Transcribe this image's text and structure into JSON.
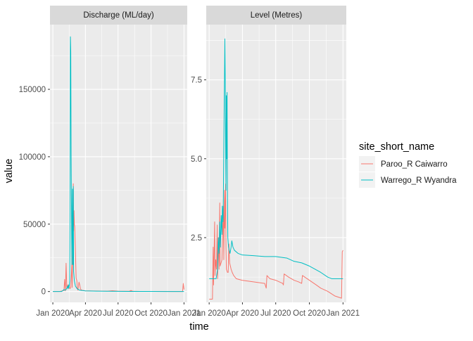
{
  "chart_data": {
    "type": "line",
    "facet_variable": "variable",
    "xlabel": "time",
    "ylabel": "value",
    "x_ticks": [
      "Jan 2020",
      "Apr 2020",
      "Jul 2020",
      "Oct 2020",
      "Jan 2021"
    ],
    "legend": {
      "title": "site_short_name",
      "position": "right",
      "entries": [
        "Paroo_R Caiwarro",
        "Warrego_R Wyandra"
      ]
    },
    "colors": {
      "Paroo_R Caiwarro": "#F8766D",
      "Warrego_R Wyandra": "#00BFC4"
    },
    "grid": true,
    "panels": [
      {
        "strip": "Discharge (ML/day)",
        "ylim": [
          -8000,
          198000
        ],
        "y_ticks": [
          0,
          50000,
          100000,
          150000
        ],
        "y_tick_labels": [
          "0",
          "50000",
          "100000",
          "150000"
        ],
        "series": [
          {
            "name": "Paroo_R Caiwarro",
            "points": [
              [
                "2020-01-01",
                0
              ],
              [
                "2020-01-20",
                0
              ],
              [
                "2020-02-01",
                800
              ],
              [
                "2020-02-03",
                9000
              ],
              [
                "2020-02-05",
                500
              ],
              [
                "2020-02-07",
                21000
              ],
              [
                "2020-02-09",
                2000
              ],
              [
                "2020-02-11",
                5000
              ],
              [
                "2020-02-13",
                3000
              ],
              [
                "2020-02-15",
                4000
              ],
              [
                "2020-02-17",
                2000
              ],
              [
                "2020-02-20",
                3000
              ],
              [
                "2020-02-23",
                20000
              ],
              [
                "2020-02-24",
                3000
              ],
              [
                "2020-02-26",
                40000
              ],
              [
                "2020-02-27",
                80000
              ],
              [
                "2020-02-28",
                45000
              ],
              [
                "2020-02-29",
                60000
              ],
              [
                "2020-03-01",
                50000
              ],
              [
                "2020-03-02",
                48000
              ],
              [
                "2020-03-04",
                30000
              ],
              [
                "2020-03-06",
                10000
              ],
              [
                "2020-03-08",
                8000
              ],
              [
                "2020-03-09",
                3000
              ],
              [
                "2020-03-11",
                1000
              ],
              [
                "2020-03-14",
                7000
              ],
              [
                "2020-03-16",
                5000
              ],
              [
                "2020-03-18",
                2000
              ],
              [
                "2020-03-21",
                1000
              ],
              [
                "2020-03-26",
                800
              ],
              [
                "2020-04-01",
                500
              ],
              [
                "2020-05-01",
                400
              ],
              [
                "2020-06-01",
                300
              ],
              [
                "2020-06-15",
                600
              ],
              [
                "2020-07-01",
                300
              ],
              [
                "2020-08-01",
                200
              ],
              [
                "2020-08-06",
                800
              ],
              [
                "2020-08-11",
                200
              ],
              [
                "2020-09-01",
                100
              ],
              [
                "2020-10-01",
                100
              ],
              [
                "2020-11-01",
                50
              ],
              [
                "2020-12-01",
                20
              ],
              [
                "2020-12-28",
                0
              ],
              [
                "2020-12-30",
                6000
              ],
              [
                "2021-01-01",
                1500
              ]
            ]
          },
          {
            "name": "Warrego_R Wyandra",
            "points": [
              [
                "2020-01-01",
                0
              ],
              [
                "2020-01-25",
                0
              ],
              [
                "2020-01-28",
                500
              ],
              [
                "2020-02-01",
                1500
              ],
              [
                "2020-02-03",
                1000
              ],
              [
                "2020-02-07",
                1500
              ],
              [
                "2020-02-10",
                3000
              ],
              [
                "2020-02-11",
                4000
              ],
              [
                "2020-02-13",
                2000
              ],
              [
                "2020-02-14",
                5000
              ],
              [
                "2020-02-15",
                3000
              ],
              [
                "2020-02-16",
                4500
              ],
              [
                "2020-02-17",
                8000
              ],
              [
                "2020-02-18",
                60000
              ],
              [
                "2020-02-19",
                189000
              ],
              [
                "2020-02-20",
                178000
              ],
              [
                "2020-02-21",
                103000
              ],
              [
                "2020-02-22",
                60000
              ],
              [
                "2020-02-23",
                20000
              ],
              [
                "2020-02-24",
                55000
              ],
              [
                "2020-02-25",
                76000
              ],
              [
                "2020-02-26",
                20000
              ],
              [
                "2020-02-27",
                78000
              ],
              [
                "2020-02-28",
                15000
              ],
              [
                "2020-03-01",
                8000
              ],
              [
                "2020-03-04",
                4000
              ],
              [
                "2020-03-09",
                2000
              ],
              [
                "2020-03-16",
                1000
              ],
              [
                "2020-04-01",
                500
              ],
              [
                "2020-05-01",
                300
              ],
              [
                "2020-06-01",
                200
              ],
              [
                "2020-07-01",
                150
              ],
              [
                "2020-08-01",
                100
              ],
              [
                "2020-09-01",
                80
              ],
              [
                "2020-10-01",
                50
              ],
              [
                "2020-11-01",
                20
              ],
              [
                "2020-12-01",
                5
              ],
              [
                "2020-12-30",
                0
              ],
              [
                "2021-01-01",
                0
              ]
            ]
          }
        ]
      },
      {
        "strip": "Level (Metres)",
        "ylim": [
          0.45,
          9.25
        ],
        "y_ticks": [
          2.5,
          5.0,
          7.5
        ],
        "y_tick_labels": [
          "2.5",
          "5.0",
          "7.5"
        ],
        "series": [
          {
            "name": "Paroo_R Caiwarro",
            "points": [
              [
                "2020-01-01",
                0.55
              ],
              [
                "2020-01-10",
                0.55
              ],
              [
                "2020-01-12",
                2.2
              ],
              [
                "2020-01-13",
                1.0
              ],
              [
                "2020-01-16",
                3.0
              ],
              [
                "2020-01-17",
                1.3
              ],
              [
                "2020-01-19",
                1.8
              ],
              [
                "2020-01-21",
                1.5
              ],
              [
                "2020-01-23",
                2.9
              ],
              [
                "2020-01-24",
                1.2
              ],
              [
                "2020-01-27",
                2.5
              ],
              [
                "2020-01-28",
                1.5
              ],
              [
                "2020-01-30",
                3.6
              ],
              [
                "2020-01-31",
                1.6
              ],
              [
                "2020-02-05",
                1.8
              ],
              [
                "2020-02-09",
                3.5
              ],
              [
                "2020-02-10",
                1.8
              ],
              [
                "2020-02-12",
                4.0
              ],
              [
                "2020-02-13",
                2.8
              ],
              [
                "2020-02-14",
                3.5
              ],
              [
                "2020-02-15",
                4.2
              ],
              [
                "2020-02-16",
                2.2
              ],
              [
                "2020-02-17",
                1.5
              ],
              [
                "2020-02-20",
                1.4
              ],
              [
                "2020-02-22",
                1.4
              ],
              [
                "2020-02-24",
                2.3
              ],
              [
                "2020-02-26",
                1.7
              ],
              [
                "2020-03-01",
                1.5
              ],
              [
                "2020-03-04",
                1.4
              ],
              [
                "2020-03-08",
                1.3
              ],
              [
                "2020-03-15",
                1.2
              ],
              [
                "2020-03-31",
                1.15
              ],
              [
                "2020-05-01",
                1.1
              ],
              [
                "2020-06-01",
                1.05
              ],
              [
                "2020-06-05",
                0.9
              ],
              [
                "2020-06-07",
                1.3
              ],
              [
                "2020-06-15",
                1.2
              ],
              [
                "2020-07-01",
                1.15
              ],
              [
                "2020-07-20",
                1.05
              ],
              [
                "2020-07-22",
                1.0
              ],
              [
                "2020-07-24",
                1.35
              ],
              [
                "2020-08-05",
                1.25
              ],
              [
                "2020-08-20",
                1.15
              ],
              [
                "2020-09-01",
                1.1
              ],
              [
                "2020-09-10",
                1.05
              ],
              [
                "2020-09-12",
                1.3
              ],
              [
                "2020-10-01",
                1.15
              ],
              [
                "2020-10-20",
                1.0
              ],
              [
                "2020-11-01",
                0.9
              ],
              [
                "2020-11-20",
                0.8
              ],
              [
                "2020-12-10",
                0.65
              ],
              [
                "2020-12-28",
                0.58
              ],
              [
                "2020-12-30",
                2.05
              ],
              [
                "2021-01-01",
                2.1
              ]
            ]
          },
          {
            "name": "Warrego_R Wyandra",
            "points": [
              [
                "2020-01-01",
                1.2
              ],
              [
                "2020-01-20",
                1.2
              ],
              [
                "2020-01-24",
                1.5
              ],
              [
                "2020-01-26",
                2.5
              ],
              [
                "2020-01-28",
                2.0
              ],
              [
                "2020-01-30",
                3.0
              ],
              [
                "2020-02-01",
                2.2
              ],
              [
                "2020-02-03",
                3.2
              ],
              [
                "2020-02-05",
                2.6
              ],
              [
                "2020-02-06",
                3.5
              ],
              [
                "2020-02-08",
                3.0
              ],
              [
                "2020-02-09",
                4.0
              ],
              [
                "2020-02-11",
                6.5
              ],
              [
                "2020-02-13",
                8.8
              ],
              [
                "2020-02-14",
                7.6
              ],
              [
                "2020-02-15",
                5.5
              ],
              [
                "2020-02-16",
                4.0
              ],
              [
                "2020-02-17",
                7.0
              ],
              [
                "2020-02-18",
                5.0
              ],
              [
                "2020-02-19",
                7.1
              ],
              [
                "2020-02-20",
                4.0
              ],
              [
                "2020-02-21",
                2.5
              ],
              [
                "2020-02-23",
                2.2
              ],
              [
                "2020-02-25",
                2.1
              ],
              [
                "2020-02-27",
                2.0
              ],
              [
                "2020-03-01",
                2.2
              ],
              [
                "2020-03-03",
                2.4
              ],
              [
                "2020-03-06",
                2.2
              ],
              [
                "2020-03-10",
                2.1
              ],
              [
                "2020-03-20",
                2.0
              ],
              [
                "2020-04-01",
                1.95
              ],
              [
                "2020-05-01",
                1.93
              ],
              [
                "2020-06-01",
                1.9
              ],
              [
                "2020-07-01",
                1.9
              ],
              [
                "2020-08-01",
                1.85
              ],
              [
                "2020-08-20",
                1.75
              ],
              [
                "2020-09-10",
                1.7
              ],
              [
                "2020-10-01",
                1.6
              ],
              [
                "2020-11-01",
                1.4
              ],
              [
                "2020-11-20",
                1.25
              ],
              [
                "2020-12-01",
                1.2
              ],
              [
                "2021-01-01",
                1.2
              ]
            ]
          }
        ]
      }
    ]
  }
}
